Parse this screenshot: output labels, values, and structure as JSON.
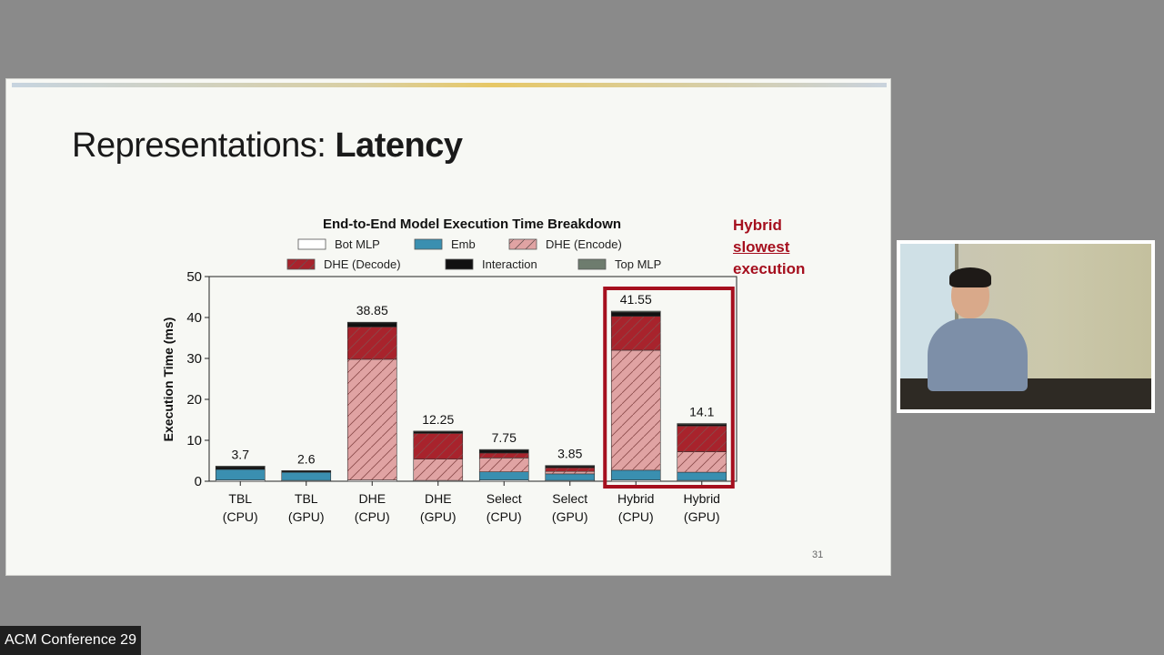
{
  "slide": {
    "title_regular": "Representations: ",
    "title_bold": "Latency",
    "page_number": "31"
  },
  "annotation": {
    "line1": "Hybrid",
    "line2": "slowest",
    "line3": "execution",
    "color": "#a50f1e"
  },
  "participant_label": "ACM Conference 29",
  "colors": {
    "bot_mlp": "#ffffff",
    "emb": "#3a8fb0",
    "dhe_encode": "#e0a3a3",
    "dhe_decode": "#a8232c",
    "interaction": "#111111",
    "top_mlp": "#6e7c6e",
    "highlight_box": "#a50f1e"
  },
  "chart_data": {
    "type": "bar",
    "stacked": true,
    "title": "End-to-End Model Execution Time Breakdown",
    "ylabel": "Execution Time (ms)",
    "xlabel": "",
    "ylim": [
      0,
      50
    ],
    "yticks": [
      "0",
      "10",
      "20",
      "30",
      "40",
      "50"
    ],
    "legend_position": "top",
    "legend": [
      "Bot MLP",
      "Emb",
      "DHE (Encode)",
      "DHE (Decode)",
      "Interaction",
      "Top MLP"
    ],
    "categories": [
      [
        "TBL",
        "(CPU)"
      ],
      [
        "TBL",
        "(GPU)"
      ],
      [
        "DHE",
        "(CPU)"
      ],
      [
        "DHE",
        "(GPU)"
      ],
      [
        "Select",
        "(CPU)"
      ],
      [
        "Select",
        "(GPU)"
      ],
      [
        "Hybrid",
        "(CPU)"
      ],
      [
        "Hybrid",
        "(GPU)"
      ]
    ],
    "totals": [
      "3.7",
      "2.6",
      "38.85",
      "12.25",
      "7.75",
      "3.85",
      "41.55",
      "14.1"
    ],
    "series": [
      {
        "name": "Bot MLP",
        "values": [
          0.3,
          0.2,
          0.3,
          0.2,
          0.3,
          0.2,
          0.3,
          0.2
        ]
      },
      {
        "name": "Emb",
        "values": [
          2.6,
          2.0,
          0,
          0,
          2.0,
          1.6,
          2.4,
          2.0
        ]
      },
      {
        "name": "DHE (Encode)",
        "values": [
          0,
          0,
          29.5,
          5.2,
          3.4,
          0.6,
          29.3,
          5.0
        ]
      },
      {
        "name": "DHE (Decode)",
        "values": [
          0,
          0,
          7.9,
          6.3,
          1.2,
          0.9,
          8.3,
          6.3
        ]
      },
      {
        "name": "Interaction",
        "values": [
          0.6,
          0.3,
          1.0,
          0.4,
          0.7,
          0.4,
          1.0,
          0.4
        ]
      },
      {
        "name": "Top MLP",
        "values": [
          0.2,
          0.1,
          0.15,
          0.15,
          0.15,
          0.15,
          0.25,
          0.2
        ]
      }
    ],
    "highlight": {
      "from_category": 6,
      "to_category": 7
    }
  }
}
